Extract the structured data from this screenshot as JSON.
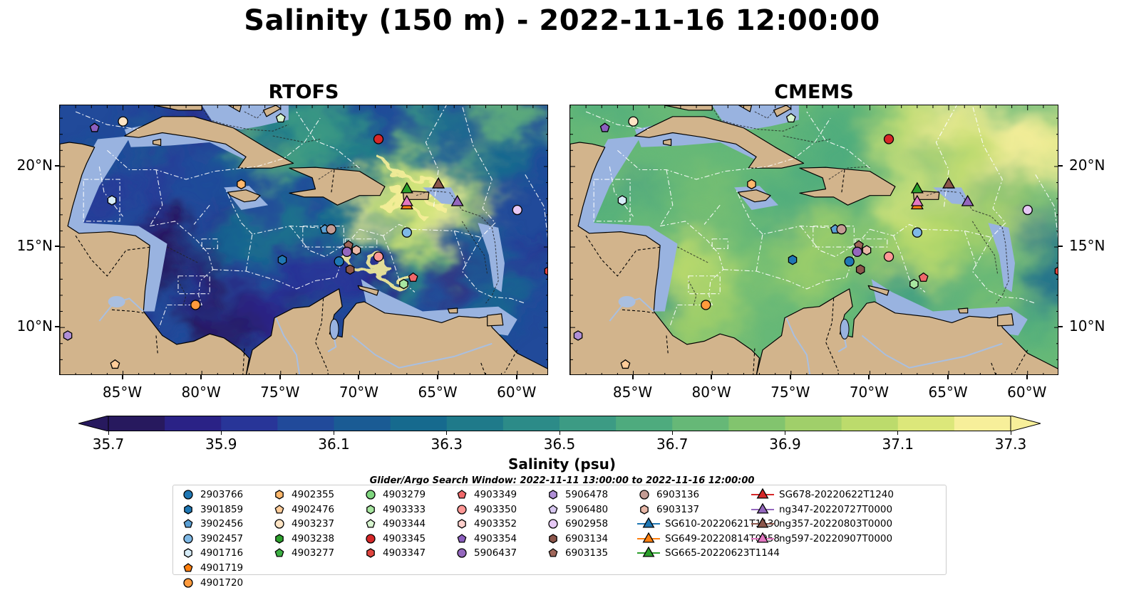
{
  "title": "Salinity (150 m) - 2022-11-16 12:00:00",
  "panels": [
    {
      "title": "RTOFS",
      "variant": "rtofs"
    },
    {
      "title": "CMEMS",
      "variant": "cmems"
    }
  ],
  "colors": {
    "land": "#d2b48c",
    "shelf": "#99b3e0",
    "rivers": "#a9bfe0"
  },
  "longitude_ticks": [
    "85°W",
    "80°W",
    "75°W",
    "70°W",
    "65°W",
    "60°W"
  ],
  "latitude_ticks": [
    "20°N",
    "15°N",
    "10°N"
  ],
  "colorbar": {
    "label": "Salinity (psu)",
    "min": 35.7,
    "max": 37.3,
    "step": 0.1,
    "extend": "both",
    "tick_labels": [
      "35.7",
      "35.9",
      "36.1",
      "36.3",
      "36.5",
      "36.7",
      "36.9",
      "37.1",
      "37.3"
    ],
    "colors": [
      "#27195e",
      "#2a2286",
      "#283598",
      "#214a9a",
      "#1a5b94",
      "#166a8e",
      "#1f7a8a",
      "#2c8b88",
      "#3c9b84",
      "#4eab7e",
      "#66b877",
      "#82c46e",
      "#a0cf6a",
      "#bcdb6c",
      "#dce77a",
      "#f7ef9a"
    ]
  },
  "search_window": "Glider/Argo Search Window: 2022-11-11 13:00:00 to 2022-11-16 12:00:00",
  "legend": [
    {
      "label": "2903766",
      "marker": "circle",
      "color": "#1f77b4"
    },
    {
      "label": "3901859",
      "marker": "hexagon",
      "color": "#1f77b4"
    },
    {
      "label": "3902456",
      "marker": "pentagon",
      "color": "#5a9fd4"
    },
    {
      "label": "3902457",
      "marker": "circle",
      "color": "#7fb9e6"
    },
    {
      "label": "4901716",
      "marker": "hexagon",
      "color": "#d6ecf8"
    },
    {
      "label": "4901719",
      "marker": "pentagon",
      "color": "#ff7f0e"
    },
    {
      "label": "4901720",
      "marker": "circle",
      "color": "#ff9a3c"
    },
    {
      "label": "4902355",
      "marker": "hexagon",
      "color": "#ffb86c"
    },
    {
      "label": "4902476",
      "marker": "pentagon",
      "color": "#ffcc99"
    },
    {
      "label": "4903237",
      "marker": "circle",
      "color": "#ffe4c4"
    },
    {
      "label": "4903238",
      "marker": "hexagon",
      "color": "#2ca02c"
    },
    {
      "label": "4903277",
      "marker": "pentagon",
      "color": "#3cb043"
    },
    {
      "label": "4903279",
      "marker": "circle",
      "color": "#7fd67f"
    },
    {
      "label": "4903333",
      "marker": "hexagon",
      "color": "#a8e6a0"
    },
    {
      "label": "4903344",
      "marker": "pentagon",
      "color": "#d8f5d0"
    },
    {
      "label": "4903345",
      "marker": "circle",
      "color": "#d62728"
    },
    {
      "label": "4903347",
      "marker": "hexagon",
      "color": "#e0453f"
    },
    {
      "label": "4903349",
      "marker": "pentagon",
      "color": "#f0686a"
    },
    {
      "label": "4903350",
      "marker": "circle",
      "color": "#ff9896"
    },
    {
      "label": "4903352",
      "marker": "hexagon",
      "color": "#ffd0cc"
    },
    {
      "label": "4903354",
      "marker": "pentagon",
      "color": "#8c5fbf"
    },
    {
      "label": "5906437",
      "marker": "circle",
      "color": "#9467bd"
    },
    {
      "label": "5906478",
      "marker": "hexagon",
      "color": "#b08fd6"
    },
    {
      "label": "5906480",
      "marker": "pentagon",
      "color": "#d8c8f0"
    },
    {
      "label": "6902958",
      "marker": "circle",
      "color": "#e6c8f5"
    },
    {
      "label": "6903134",
      "marker": "hexagon",
      "color": "#8c564b"
    },
    {
      "label": "6903135",
      "marker": "pentagon",
      "color": "#a0675a"
    },
    {
      "label": "6903136",
      "marker": "circle",
      "color": "#c49c94"
    },
    {
      "label": "6903137",
      "marker": "hexagon",
      "color": "#e8b8a8"
    },
    {
      "label": "SG610-20220621T1130",
      "marker": "triangle",
      "color": "#1f77b4"
    },
    {
      "label": "SG649-20220814T0958",
      "marker": "triangle",
      "color": "#ff7f0e"
    },
    {
      "label": "SG665-20220623T1144",
      "marker": "triangle",
      "color": "#2ca02c"
    },
    {
      "label": "SG678-20220622T1240",
      "marker": "triangle",
      "color": "#d62728"
    },
    {
      "label": "ng347-20220727T0000",
      "marker": "triangle",
      "color": "#9467bd"
    },
    {
      "label": "ng357-20220803T0000",
      "marker": "triangle",
      "color": "#8c564b"
    },
    {
      "label": "ng597-20220907T0000",
      "marker": "triangle",
      "color": "#e377c2"
    }
  ],
  "observations": [
    {
      "id": "4903237",
      "lon": -85.0,
      "lat": 22.8
    },
    {
      "id": "4903354",
      "lon": -86.8,
      "lat": 22.4
    },
    {
      "id": "4903344",
      "lon": -75.0,
      "lat": 23.0
    },
    {
      "id": "4903345",
      "lon": -68.8,
      "lat": 21.7
    },
    {
      "id": "4901716",
      "lon": -85.7,
      "lat": 17.9
    },
    {
      "id": "4902355",
      "lon": -77.5,
      "lat": 18.9
    },
    {
      "id": "SG665-20220623T1144",
      "lon": -67.0,
      "lat": 18.6
    },
    {
      "id": "ng357-20220803T0000",
      "lon": -65.0,
      "lat": 18.9
    },
    {
      "id": "SG649-20220814T0958",
      "lon": -67.0,
      "lat": 17.6
    },
    {
      "id": "ng597-20220907T0000",
      "lon": -67.0,
      "lat": 17.8
    },
    {
      "id": "ng347-20220727T0000",
      "lon": -63.8,
      "lat": 17.8
    },
    {
      "id": "6902958",
      "lon": -60.0,
      "lat": 17.3
    },
    {
      "id": "3902456",
      "lon": -72.2,
      "lat": 16.1
    },
    {
      "id": "6903136",
      "lon": -71.8,
      "lat": 16.1
    },
    {
      "id": "3902457",
      "lon": -67.0,
      "lat": 15.9
    },
    {
      "id": "6903135",
      "lon": -70.7,
      "lat": 15.1
    },
    {
      "id": "5906437",
      "lon": -70.8,
      "lat": 14.7
    },
    {
      "id": "6903137",
      "lon": -70.2,
      "lat": 14.8
    },
    {
      "id": "4903350",
      "lon": -68.8,
      "lat": 14.4
    },
    {
      "id": "3901859",
      "lon": -74.9,
      "lat": 14.2
    },
    {
      "id": "2903766",
      "lon": -71.3,
      "lat": 14.1
    },
    {
      "id": "6903134",
      "lon": -70.6,
      "lat": 13.6
    },
    {
      "id": "4903347",
      "lon": -58.0,
      "lat": 13.5
    },
    {
      "id": "4903349",
      "lon": -66.6,
      "lat": 13.1
    },
    {
      "id": "4903333",
      "lon": -67.2,
      "lat": 12.7
    },
    {
      "id": "4901720",
      "lon": -80.4,
      "lat": 11.4
    },
    {
      "id": "5906478",
      "lon": -88.5,
      "lat": 9.5
    },
    {
      "id": "4902476",
      "lon": -85.5,
      "lat": 7.7
    }
  ]
}
